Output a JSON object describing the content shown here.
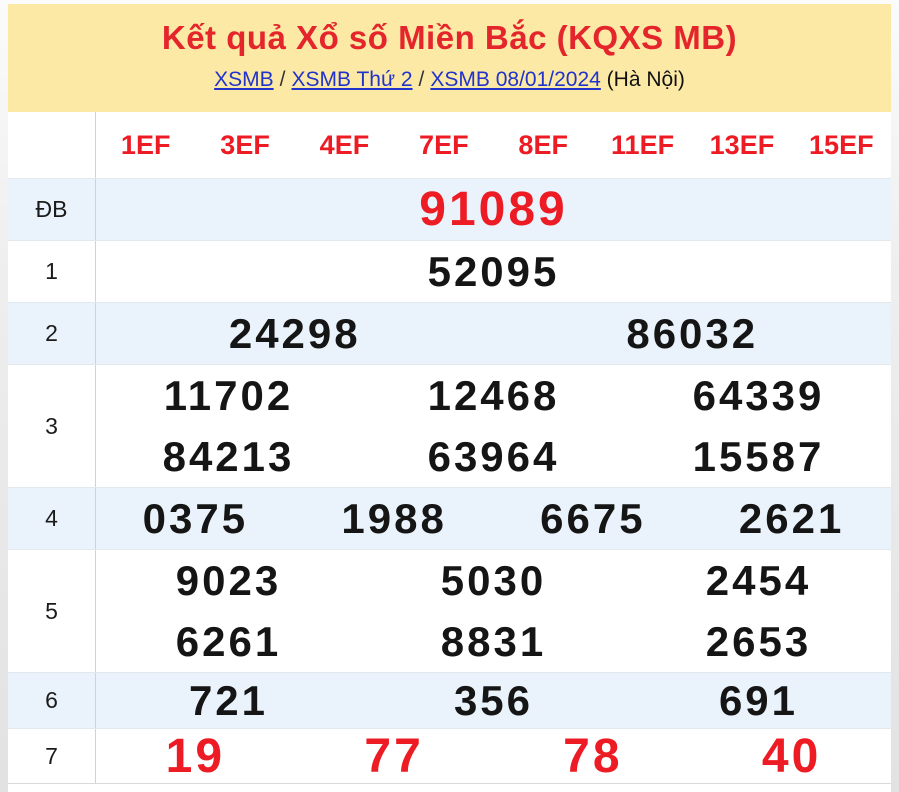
{
  "banner": {
    "title": "Kết quả Xổ số Miền Bắc (KQXS MB)",
    "breadcrumb": {
      "links": [
        "XSMB",
        "XSMB Thứ 2",
        "XSMB 08/01/2024"
      ],
      "separator": "/",
      "suffix": "(Hà Nội)"
    }
  },
  "table": {
    "column_headers": [
      "1EF",
      "3EF",
      "4EF",
      "7EF",
      "8EF",
      "11EF",
      "13EF",
      "15EF"
    ],
    "rows": [
      {
        "label": "ĐB",
        "style": "red",
        "lines": [
          [
            "91089"
          ]
        ]
      },
      {
        "label": "1",
        "style": "normal",
        "lines": [
          [
            "52095"
          ]
        ]
      },
      {
        "label": "2",
        "style": "normal",
        "lines": [
          [
            "24298",
            "86032"
          ]
        ]
      },
      {
        "label": "3",
        "style": "normal",
        "lines": [
          [
            "11702",
            "12468",
            "64339"
          ],
          [
            "84213",
            "63964",
            "15587"
          ]
        ]
      },
      {
        "label": "4",
        "style": "normal",
        "lines": [
          [
            "0375",
            "1988",
            "6675",
            "2621"
          ]
        ]
      },
      {
        "label": "5",
        "style": "normal",
        "lines": [
          [
            "9023",
            "5030",
            "2454"
          ],
          [
            "6261",
            "8831",
            "2653"
          ]
        ]
      },
      {
        "label": "6",
        "style": "normal",
        "lines": [
          [
            "721",
            "356",
            "691"
          ]
        ]
      },
      {
        "label": "7",
        "style": "red",
        "lines": [
          [
            "19",
            "77",
            "78",
            "40"
          ]
        ]
      }
    ]
  },
  "colors": {
    "banner_bg": "#fbe9a5",
    "title_red": "#e4252b",
    "number_red": "#ed1c24",
    "link_blue": "#2233cc",
    "alt_row_bg": "#eaf3fb"
  }
}
